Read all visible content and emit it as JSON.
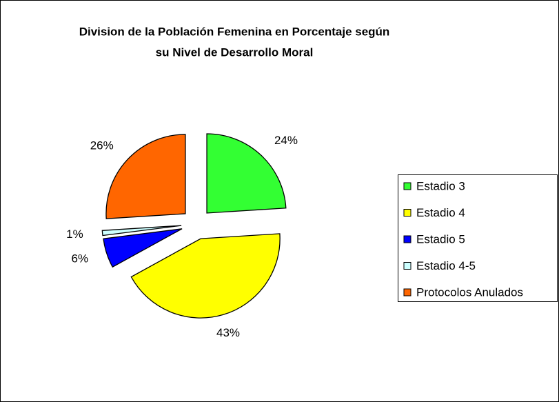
{
  "chart_data": {
    "type": "pie",
    "title": [
      "Division de la Población Femenina en Porcentaje según",
      "su Nivel de Desarrollo Moral"
    ],
    "categories": [
      "Estadio 3",
      "Estadio 4",
      "Estadio 5",
      "Estadio 4-5",
      "Protocolos Anulados"
    ],
    "values": [
      24,
      43,
      6,
      1,
      26
    ],
    "value_labels": [
      "24%",
      "43%",
      "6%",
      "1%",
      "26%"
    ],
    "colors": [
      "#33ff33",
      "#ffff00",
      "#0000ff",
      "#ccffff",
      "#ff6600"
    ],
    "legend": "right"
  }
}
